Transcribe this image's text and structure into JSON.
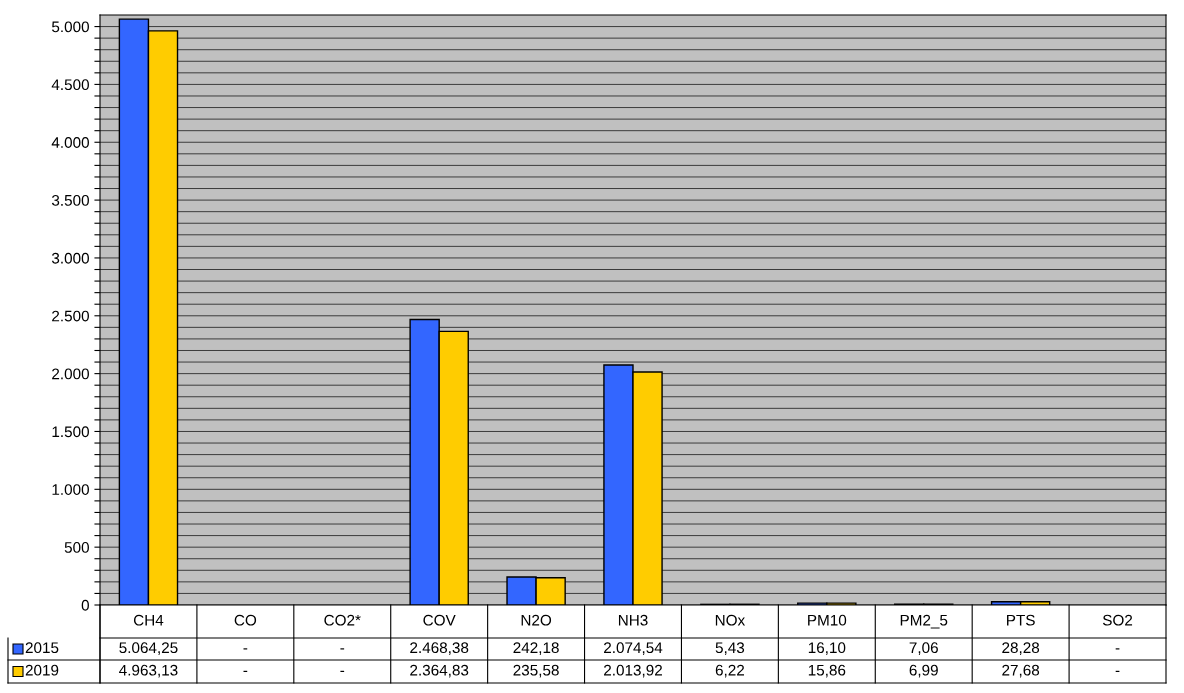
{
  "chart_data": {
    "type": "bar",
    "categories": [
      "CH4",
      "CO",
      "CO2*",
      "COV",
      "N2O",
      "NH3",
      "NOx",
      "PM10",
      "PM2_5",
      "PTS",
      "SO2"
    ],
    "series": [
      {
        "name": "2015",
        "color": "#3366ff",
        "values": [
          5064.25,
          null,
          null,
          2468.38,
          242.18,
          2074.54,
          5.43,
          16.1,
          7.06,
          28.28,
          null
        ],
        "value_labels": [
          "5.064,25",
          "-",
          "-",
          "2.468,38",
          "242,18",
          "2.074,54",
          "5,43",
          "16,10",
          "7,06",
          "28,28",
          "-"
        ]
      },
      {
        "name": "2019",
        "color": "#ffcc00",
        "values": [
          4963.13,
          null,
          null,
          2364.83,
          235.58,
          2013.92,
          6.22,
          15.86,
          6.99,
          27.68,
          null
        ],
        "value_labels": [
          "4.963,13",
          "-",
          "-",
          "2.364,83",
          "235,58",
          "2.013,92",
          "6,22",
          "15,86",
          "6,99",
          "27,68",
          "-"
        ]
      }
    ],
    "ylim": [
      0,
      5100
    ],
    "yticks": [
      0,
      {
        "value": 100,
        "label": null
      },
      {
        "value": 200,
        "label": null
      },
      {
        "value": 300,
        "label": null
      },
      {
        "value": 400,
        "label": null
      },
      500,
      {
        "value": 600,
        "label": null
      },
      {
        "value": 700,
        "label": null
      },
      {
        "value": 800,
        "label": null
      },
      {
        "value": 900,
        "label": null
      },
      {
        "value": 1000,
        "label": "1.000"
      },
      {
        "value": 1100,
        "label": null
      },
      {
        "value": 1200,
        "label": null
      },
      {
        "value": 1300,
        "label": null
      },
      {
        "value": 1400,
        "label": null
      },
      {
        "value": 1500,
        "label": "1.500"
      },
      {
        "value": 1600,
        "label": null
      },
      {
        "value": 1700,
        "label": null
      },
      {
        "value": 1800,
        "label": null
      },
      {
        "value": 1900,
        "label": null
      },
      {
        "value": 2000,
        "label": "2.000"
      },
      {
        "value": 2100,
        "label": null
      },
      {
        "value": 2200,
        "label": null
      },
      {
        "value": 2300,
        "label": null
      },
      {
        "value": 2400,
        "label": null
      },
      {
        "value": 2500,
        "label": "2.500"
      },
      {
        "value": 2600,
        "label": null
      },
      {
        "value": 2700,
        "label": null
      },
      {
        "value": 2800,
        "label": null
      },
      {
        "value": 2900,
        "label": null
      },
      {
        "value": 3000,
        "label": "3.000"
      },
      {
        "value": 3100,
        "label": null
      },
      {
        "value": 3200,
        "label": null
      },
      {
        "value": 3300,
        "label": null
      },
      {
        "value": 3400,
        "label": null
      },
      {
        "value": 3500,
        "label": "3.500"
      },
      {
        "value": 3600,
        "label": null
      },
      {
        "value": 3700,
        "label": null
      },
      {
        "value": 3800,
        "label": null
      },
      {
        "value": 3900,
        "label": null
      },
      {
        "value": 4000,
        "label": "4.000"
      },
      {
        "value": 4100,
        "label": null
      },
      {
        "value": 4200,
        "label": null
      },
      {
        "value": 4300,
        "label": null
      },
      {
        "value": 4400,
        "label": null
      },
      {
        "value": 4500,
        "label": "4.500"
      },
      {
        "value": 4600,
        "label": null
      },
      {
        "value": 4700,
        "label": null
      },
      {
        "value": 4800,
        "label": null
      },
      {
        "value": 4900,
        "label": null
      },
      {
        "value": 5000,
        "label": "5.000"
      }
    ],
    "grid": "y",
    "legend": "bottom"
  }
}
